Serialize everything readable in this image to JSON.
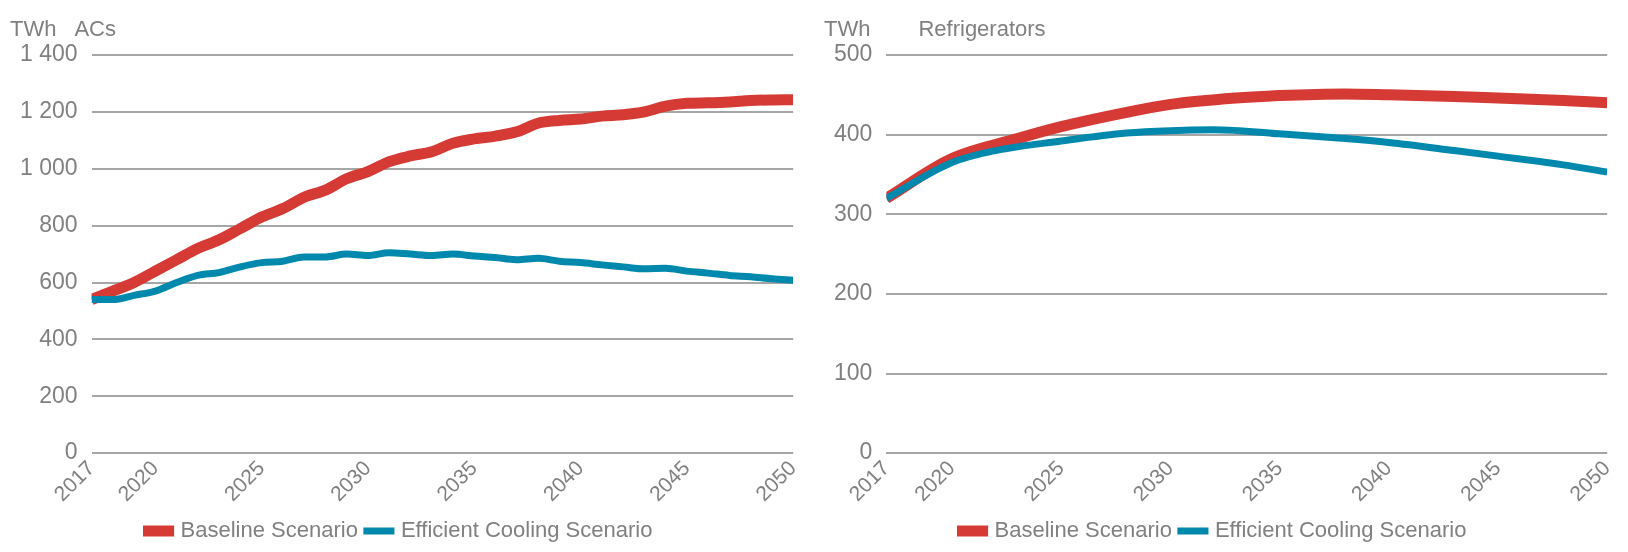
{
  "chart_data": [
    {
      "type": "line",
      "title": "ACs",
      "ylabel": "TWh",
      "xlim": [
        2017,
        2050
      ],
      "xticks": [
        2017,
        2020,
        2025,
        2030,
        2035,
        2040,
        2045,
        2050
      ],
      "ylim": [
        0,
        1400
      ],
      "yticks": [
        0,
        200,
        400,
        600,
        800,
        {
          "value": 1000,
          "label": "1 000"
        },
        {
          "value": 1200,
          "label": "1 200"
        },
        {
          "value": 1400,
          "label": "1 400"
        }
      ],
      "grid": "y",
      "legend": "bottom",
      "marker": "none",
      "line_style": "solid",
      "x": [
        2017,
        2018,
        2019,
        2020,
        2021,
        2022,
        2023,
        2024,
        2025,
        2026,
        2027,
        2028,
        2029,
        2030,
        2031,
        2032,
        2033,
        2034,
        2035,
        2036,
        2037,
        2038,
        2039,
        2040,
        2041,
        2042,
        2043,
        2044,
        2045,
        2046,
        2047,
        2048,
        2049,
        2050
      ],
      "series": [
        {
          "name": "Baseline Scenario",
          "color": "#d63a35",
          "values": [
            540,
            570,
            600,
            640,
            680,
            720,
            750,
            790,
            830,
            860,
            900,
            925,
            965,
            990,
            1025,
            1045,
            1060,
            1090,
            1105,
            1115,
            1130,
            1160,
            1170,
            1175,
            1185,
            1190,
            1200,
            1220,
            1230,
            1232,
            1235,
            1240,
            1242,
            1243
          ]
        },
        {
          "name": "Efficient Cooling Scenario",
          "color": "#0089ad",
          "values": [
            540,
            540,
            555,
            570,
            600,
            625,
            635,
            655,
            670,
            675,
            690,
            690,
            700,
            695,
            705,
            700,
            695,
            700,
            693,
            688,
            680,
            685,
            675,
            670,
            662,
            655,
            648,
            650,
            640,
            633,
            625,
            620,
            613,
            608
          ]
        }
      ]
    },
    {
      "type": "line",
      "title": "Refrigerators",
      "ylabel": "TWh",
      "xlim": [
        2017,
        2050
      ],
      "xticks": [
        2017,
        2020,
        2025,
        2030,
        2035,
        2040,
        2045,
        2050
      ],
      "ylim": [
        0,
        500
      ],
      "yticks": [
        0,
        100,
        200,
        300,
        400,
        500
      ],
      "grid": "y",
      "legend": "bottom",
      "marker": "none",
      "line_style": "solid",
      "series": [
        {
          "name": "Baseline Scenario",
          "color": "#d63a35",
          "x": [
            2017,
            2020,
            2023,
            2025,
            2028,
            2030,
            2033,
            2035,
            2038,
            2040,
            2043,
            2045,
            2048,
            2050
          ],
          "values": [
            320,
            370,
            395,
            410,
            428,
            438,
            446,
            449,
            451,
            450,
            448,
            446,
            443,
            440
          ]
        },
        {
          "name": "Efficient Cooling Scenario",
          "color": "#0089ad",
          "x": [
            2017,
            2020,
            2022,
            2025,
            2028,
            2030,
            2032,
            2035,
            2038,
            2040,
            2043,
            2045,
            2048,
            2050
          ],
          "values": [
            320,
            365,
            380,
            392,
            402,
            405,
            406,
            401,
            395,
            390,
            380,
            373,
            362,
            353
          ]
        }
      ]
    }
  ]
}
